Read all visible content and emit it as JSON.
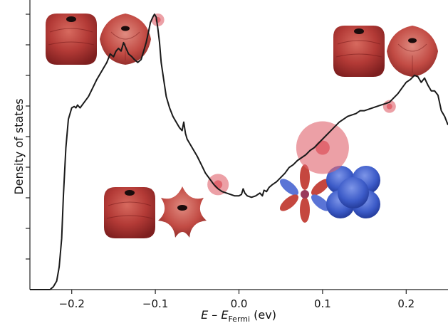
{
  "chart_data": {
    "type": "line",
    "title": "",
    "xlabel_main": "E – E",
    "xlabel_sub": "Fermi",
    "xlabel_unit": " (ev)",
    "ylabel": "Density of states",
    "xlim": [
      -0.25,
      0.25
    ],
    "ylim": [
      0,
      1
    ],
    "x_ticks": [
      -0.2,
      -0.1,
      0.0,
      0.1,
      0.2
    ],
    "x_tick_labels": [
      "−0.2",
      "−0.1",
      "0.0",
      "0.1",
      "0.2"
    ],
    "y_tick_count": 9,
    "y_tick_labels_shown": false,
    "grid": false,
    "line_color": "#1a1a1a",
    "series": [
      {
        "x": [
          -0.25,
          -0.226,
          -0.222,
          -0.218,
          -0.215,
          -0.212,
          -0.21,
          -0.207,
          -0.204,
          -0.2,
          -0.197,
          -0.195,
          -0.193,
          -0.19,
          -0.185,
          -0.18,
          -0.175,
          -0.17,
          -0.166,
          -0.162,
          -0.158,
          -0.154,
          -0.15,
          -0.147,
          -0.144,
          -0.141,
          -0.138,
          -0.135,
          -0.132,
          -0.128,
          -0.125,
          -0.121,
          -0.117,
          -0.114,
          -0.111,
          -0.108,
          -0.106,
          -0.103,
          -0.101,
          -0.099,
          -0.097,
          -0.095,
          -0.093,
          -0.09,
          -0.087,
          -0.083,
          -0.079,
          -0.075,
          -0.071,
          -0.068,
          -0.066,
          -0.064,
          -0.062,
          -0.058,
          -0.054,
          -0.05,
          -0.045,
          -0.04,
          -0.035,
          -0.03,
          -0.025,
          -0.02,
          -0.015,
          -0.01,
          -0.005,
          0.0,
          0.003,
          0.005,
          0.007,
          0.01,
          0.015,
          0.02,
          0.025,
          0.028,
          0.03,
          0.033,
          0.036,
          0.04,
          0.045,
          0.05,
          0.055,
          0.06,
          0.065,
          0.07,
          0.075,
          0.08,
          0.085,
          0.09,
          0.095,
          0.1,
          0.105,
          0.11,
          0.115,
          0.12,
          0.125,
          0.13,
          0.135,
          0.14,
          0.145,
          0.15,
          0.155,
          0.16,
          0.165,
          0.17,
          0.175,
          0.18,
          0.185,
          0.19,
          0.195,
          0.2,
          0.205,
          0.21,
          0.214,
          0.218,
          0.222,
          0.226,
          0.23,
          0.234,
          0.238,
          0.242,
          0.246,
          0.25
        ],
        "y": [
          0.0,
          0.0,
          0.01,
          0.03,
          0.08,
          0.18,
          0.33,
          0.5,
          0.6,
          0.64,
          0.645,
          0.64,
          0.65,
          0.64,
          0.66,
          0.68,
          0.71,
          0.74,
          0.76,
          0.78,
          0.8,
          0.83,
          0.82,
          0.84,
          0.85,
          0.84,
          0.87,
          0.85,
          0.83,
          0.82,
          0.81,
          0.8,
          0.81,
          0.84,
          0.87,
          0.91,
          0.94,
          0.96,
          0.97,
          0.96,
          0.92,
          0.87,
          0.8,
          0.74,
          0.68,
          0.64,
          0.61,
          0.59,
          0.57,
          0.56,
          0.59,
          0.55,
          0.53,
          0.51,
          0.49,
          0.47,
          0.44,
          0.41,
          0.39,
          0.37,
          0.355,
          0.345,
          0.34,
          0.335,
          0.33,
          0.33,
          0.335,
          0.355,
          0.34,
          0.33,
          0.325,
          0.33,
          0.34,
          0.33,
          0.35,
          0.345,
          0.36,
          0.37,
          0.38,
          0.395,
          0.41,
          0.43,
          0.44,
          0.455,
          0.465,
          0.475,
          0.49,
          0.5,
          0.515,
          0.53,
          0.545,
          0.56,
          0.575,
          0.59,
          0.6,
          0.61,
          0.615,
          0.62,
          0.63,
          0.63,
          0.635,
          0.64,
          0.645,
          0.65,
          0.655,
          0.66,
          0.675,
          0.69,
          0.71,
          0.73,
          0.74,
          0.755,
          0.75,
          0.73,
          0.745,
          0.72,
          0.7,
          0.7,
          0.685,
          0.63,
          0.61,
          0.58
        ]
      }
    ],
    "highlights": [
      {
        "x": -0.097,
        "y": 0.95,
        "size": "small",
        "color": "#e0606a"
      },
      {
        "x": -0.025,
        "y": 0.37,
        "size": "medium",
        "color": "#e0606a"
      },
      {
        "x": 0.1,
        "y": 0.5,
        "size": "large",
        "color": "#e0606a"
      },
      {
        "x": 0.18,
        "y": 0.645,
        "size": "small",
        "color": "#e0606a"
      }
    ],
    "orbital_insets": [
      {
        "kind": "cube",
        "color": "#b33a36",
        "group": "top-left"
      },
      {
        "kind": "rounded",
        "color": "#b33a36",
        "group": "top-left"
      },
      {
        "kind": "cube",
        "color": "#b33a36",
        "group": "top-right"
      },
      {
        "kind": "rounded",
        "color": "#b33a36",
        "group": "top-right"
      },
      {
        "kind": "cube",
        "color": "#b33a36",
        "group": "bottom-left"
      },
      {
        "kind": "flower",
        "color": "#c5473f",
        "group": "bottom-left"
      },
      {
        "kind": "lobes",
        "color": "#c5473f",
        "group": "bottom-right"
      },
      {
        "kind": "blob",
        "color": "#3c5bc8",
        "group": "bottom-right"
      }
    ]
  }
}
